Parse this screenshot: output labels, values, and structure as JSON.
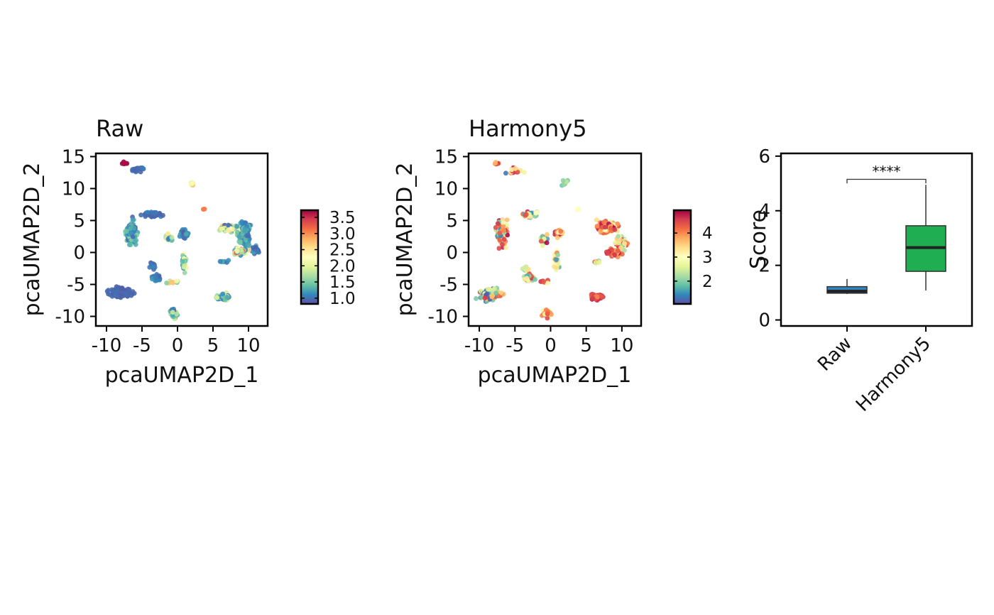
{
  "chart_data": [
    {
      "type": "scatter",
      "title": "Raw",
      "xlabel": "pcaUMAP2D_1",
      "ylabel": "pcaUMAP2D_2",
      "xlim": [
        -11.5,
        12.7
      ],
      "ylim": [
        -11.5,
        15.5
      ],
      "xticks": [
        -10,
        -5,
        0,
        5,
        10
      ],
      "xtick_labels": [
        "-10",
        "-5",
        "0",
        "5",
        "10"
      ],
      "yticks": [
        15,
        10,
        5,
        0,
        -5,
        -10
      ],
      "ytick_labels": [
        "15",
        "10",
        "5",
        "0",
        "-5",
        "-10"
      ],
      "colorbar": {
        "palette": "Spectral",
        "min": 0.82,
        "max": 3.72,
        "ticks": [
          3.5,
          3.0,
          2.5,
          2.0,
          1.5,
          1.0
        ],
        "tick_labels": [
          "3.5",
          "3.0",
          "2.5",
          "2.0",
          "1.5",
          "1.0"
        ]
      },
      "clusters": [
        {
          "x": -7.5,
          "y": 14.0,
          "sx": 0.25,
          "sy": 0.2,
          "n": 10,
          "v": [
            3.6,
            3.7
          ]
        },
        {
          "x": -5.5,
          "y": 13.0,
          "sx": 0.9,
          "sy": 0.4,
          "n": 25,
          "v": [
            0.9,
            1.1
          ]
        },
        {
          "x": -6.5,
          "y": 3.0,
          "sx": 0.7,
          "sy": 1.6,
          "n": 110,
          "v": [
            0.9,
            1.6
          ]
        },
        {
          "x": -3.5,
          "y": 6.0,
          "sx": 1.2,
          "sy": 0.3,
          "n": 60,
          "v": [
            0.9,
            1.1
          ]
        },
        {
          "x": -8.0,
          "y": -6.3,
          "sx": 1.1,
          "sy": 0.5,
          "n": 260,
          "v": [
            0.9,
            1.0
          ]
        },
        {
          "x": -3.0,
          "y": -4.0,
          "sx": 0.5,
          "sy": 0.5,
          "n": 40,
          "v": [
            0.9,
            1.2
          ]
        },
        {
          "x": -3.5,
          "y": -2.0,
          "sx": 0.3,
          "sy": 0.5,
          "n": 12,
          "v": [
            0.9,
            1.1
          ]
        },
        {
          "x": -1.2,
          "y": 2.2,
          "sx": 0.4,
          "sy": 0.5,
          "n": 20,
          "v": [
            1.0,
            2.6
          ]
        },
        {
          "x": -0.8,
          "y": -4.7,
          "sx": 0.5,
          "sy": 0.2,
          "n": 15,
          "v": [
            1.0,
            3.0
          ]
        },
        {
          "x": -0.6,
          "y": -9.5,
          "sx": 0.5,
          "sy": 0.6,
          "n": 40,
          "v": [
            0.9,
            2.0
          ]
        },
        {
          "x": 1.0,
          "y": 2.9,
          "sx": 0.5,
          "sy": 0.6,
          "n": 40,
          "v": [
            0.9,
            1.3
          ]
        },
        {
          "x": 0.9,
          "y": -1.5,
          "sx": 0.3,
          "sy": 1.2,
          "n": 40,
          "v": [
            1.0,
            2.2
          ]
        },
        {
          "x": 2.0,
          "y": 10.8,
          "sx": 0.3,
          "sy": 0.2,
          "n": 8,
          "v": [
            1.5,
            2.8
          ]
        },
        {
          "x": 3.8,
          "y": 6.8,
          "sx": 0.15,
          "sy": 0.1,
          "n": 3,
          "v": [
            3.0,
            3.1
          ]
        },
        {
          "x": 7.5,
          "y": 3.8,
          "sx": 1.3,
          "sy": 0.5,
          "n": 90,
          "v": [
            0.9,
            2.8
          ]
        },
        {
          "x": 9.5,
          "y": 3.0,
          "sx": 0.7,
          "sy": 1.8,
          "n": 110,
          "v": [
            0.9,
            1.5
          ]
        },
        {
          "x": 11.0,
          "y": 0.5,
          "sx": 0.5,
          "sy": 0.6,
          "n": 25,
          "v": [
            0.9,
            1.3
          ]
        },
        {
          "x": 8.8,
          "y": 0.1,
          "sx": 1.0,
          "sy": 0.5,
          "n": 45,
          "v": [
            1.0,
            3.2
          ]
        },
        {
          "x": 6.5,
          "y": -1.5,
          "sx": 0.5,
          "sy": 0.2,
          "n": 8,
          "v": [
            1.0,
            1.5
          ]
        },
        {
          "x": 6.5,
          "y": -7.0,
          "sx": 0.8,
          "sy": 0.4,
          "n": 60,
          "v": [
            0.9,
            2.0
          ]
        }
      ]
    },
    {
      "type": "scatter",
      "title": "Harmony5",
      "xlabel": "pcaUMAP2D_1",
      "ylabel": "pcaUMAP2D_2",
      "xlim": [
        -11.5,
        12.7
      ],
      "ylim": [
        -11.5,
        15.5
      ],
      "xticks": [
        -10,
        -5,
        0,
        5,
        10
      ],
      "xtick_labels": [
        "-10",
        "-5",
        "0",
        "5",
        "10"
      ],
      "yticks": [
        15,
        10,
        5,
        0,
        -5,
        -10
      ],
      "ytick_labels": [
        "15",
        "10",
        "5",
        "0",
        "-5",
        "-10"
      ],
      "colorbar": {
        "palette": "Spectral",
        "min": 1.05,
        "max": 4.95,
        "ticks": [
          4,
          3,
          2
        ],
        "tick_labels": [
          "4",
          "3",
          "2"
        ]
      },
      "clusters": [
        {
          "x": -7.5,
          "y": 14.0,
          "sx": 0.3,
          "sy": 0.2,
          "n": 8,
          "v": [
            3.5,
            4.9
          ]
        },
        {
          "x": -5.0,
          "y": 12.8,
          "sx": 1.0,
          "sy": 0.4,
          "n": 20,
          "v": [
            1.2,
            4.8
          ]
        },
        {
          "x": -6.8,
          "y": 3.0,
          "sx": 0.7,
          "sy": 1.6,
          "n": 90,
          "v": [
            1.2,
            4.9
          ]
        },
        {
          "x": -3.0,
          "y": 5.8,
          "sx": 1.2,
          "sy": 0.4,
          "n": 40,
          "v": [
            1.3,
            4.9
          ]
        },
        {
          "x": -8.5,
          "y": -6.5,
          "sx": 1.2,
          "sy": 0.7,
          "n": 170,
          "v": [
            1.1,
            4.8
          ]
        },
        {
          "x": -3.0,
          "y": -4.0,
          "sx": 0.6,
          "sy": 0.6,
          "n": 35,
          "v": [
            1.5,
            4.8
          ]
        },
        {
          "x": -3.5,
          "y": -2.5,
          "sx": 0.4,
          "sy": 0.4,
          "n": 10,
          "v": [
            2.0,
            3.5
          ]
        },
        {
          "x": -1.0,
          "y": 2.0,
          "sx": 0.5,
          "sy": 0.6,
          "n": 20,
          "v": [
            1.5,
            4.9
          ]
        },
        {
          "x": -0.8,
          "y": -4.6,
          "sx": 0.5,
          "sy": 0.3,
          "n": 12,
          "v": [
            2.5,
            4.8
          ]
        },
        {
          "x": -0.5,
          "y": -9.5,
          "sx": 0.5,
          "sy": 0.6,
          "n": 35,
          "v": [
            2.5,
            4.9
          ]
        },
        {
          "x": 1.2,
          "y": 3.0,
          "sx": 0.5,
          "sy": 0.6,
          "n": 35,
          "v": [
            3.0,
            4.9
          ]
        },
        {
          "x": 0.8,
          "y": -1.5,
          "sx": 0.3,
          "sy": 1.3,
          "n": 35,
          "v": [
            1.5,
            4.2
          ]
        },
        {
          "x": 2.0,
          "y": 10.8,
          "sx": 0.4,
          "sy": 0.3,
          "n": 10,
          "v": [
            1.8,
            2.4
          ]
        },
        {
          "x": 3.8,
          "y": 6.8,
          "sx": 0.15,
          "sy": 0.1,
          "n": 3,
          "v": [
            2.8,
            3.0
          ]
        },
        {
          "x": 8.0,
          "y": 4.0,
          "sx": 1.4,
          "sy": 0.7,
          "n": 110,
          "v": [
            3.0,
            4.9
          ]
        },
        {
          "x": 10.0,
          "y": 1.5,
          "sx": 0.8,
          "sy": 1.2,
          "n": 60,
          "v": [
            2.0,
            4.9
          ]
        },
        {
          "x": 8.8,
          "y": 0.0,
          "sx": 1.0,
          "sy": 0.5,
          "n": 40,
          "v": [
            3.5,
            4.9
          ]
        },
        {
          "x": 6.5,
          "y": -1.5,
          "sx": 0.5,
          "sy": 0.2,
          "n": 8,
          "v": [
            2.0,
            4.5
          ]
        },
        {
          "x": 6.5,
          "y": -7.0,
          "sx": 0.8,
          "sy": 0.4,
          "n": 60,
          "v": [
            4.0,
            4.9
          ]
        }
      ]
    },
    {
      "type": "box",
      "title": "",
      "xlabel": "",
      "ylabel": "Score",
      "ylim": [
        -0.22,
        6.1
      ],
      "yticks": [
        0,
        2,
        4,
        6
      ],
      "ytick_labels": [
        "0",
        "2",
        "4",
        "6"
      ],
      "categories": [
        "Raw",
        "Harmony5"
      ],
      "boxes": [
        {
          "label": "Raw",
          "color": "#3182bd",
          "whisker_low": 0.95,
          "q1": 0.98,
          "median": 1.05,
          "q3": 1.22,
          "whisker_high": 1.5
        },
        {
          "label": "Harmony5",
          "color": "#1fae52",
          "whisker_low": 1.08,
          "q1": 1.78,
          "median": 2.65,
          "q3": 3.45,
          "whisker_high": 4.95
        }
      ],
      "significance": {
        "label": "****",
        "y": 5.15,
        "tick_y": 5.0
      }
    }
  ]
}
